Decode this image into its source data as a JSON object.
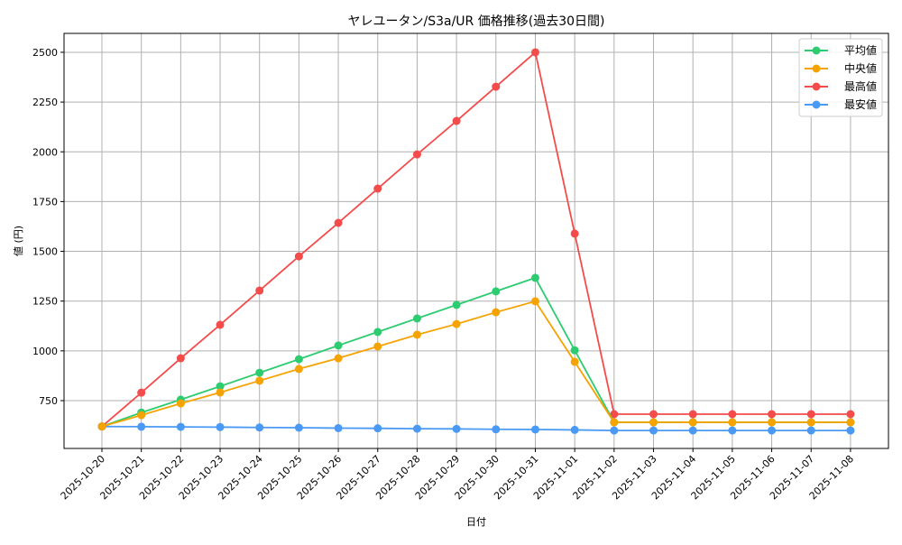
{
  "chart_data": {
    "type": "line",
    "title": "ヤレユータン/S3a/UR 価格推移(過去30日間)",
    "xlabel": "日付",
    "ylabel": "値 (円)",
    "ylim": [
      510,
      2595
    ],
    "yticks": [
      750,
      1000,
      1250,
      1500,
      1750,
      2000,
      2250,
      2500
    ],
    "grid": true,
    "legend_position": "upper right",
    "categories": [
      "2025-10-20",
      "2025-10-21",
      "2025-10-22",
      "2025-10-23",
      "2025-10-24",
      "2025-10-25",
      "2025-10-26",
      "2025-10-27",
      "2025-10-28",
      "2025-10-29",
      "2025-10-30",
      "2025-10-31",
      "2025-11-01",
      "2025-11-02",
      "2025-11-03",
      "2025-11-04",
      "2025-11-05",
      "2025-11-06",
      "2025-11-07",
      "2025-11-08"
    ],
    "series": [
      {
        "name": "平均値",
        "color": "#2ecc71",
        "values": [
          620,
          690,
          755,
          822,
          890,
          958,
          1027,
          1095,
          1163,
          1231,
          1299,
          1367,
          1003,
          641,
          641,
          641,
          641,
          641,
          641,
          641
        ]
      },
      {
        "name": "中央値",
        "color": "#f5a300",
        "values": [
          620,
          677,
          736,
          791,
          850,
          909,
          963,
          1022,
          1081,
          1135,
          1194,
          1249,
          945,
          641,
          641,
          641,
          641,
          641,
          641,
          641
        ]
      },
      {
        "name": "最高値",
        "color": "#f44b4b",
        "values": [
          620,
          790,
          963,
          1131,
          1303,
          1475,
          1643,
          1815,
          1987,
          2155,
          2327,
          2500,
          1589,
          682,
          682,
          682,
          682,
          682,
          682,
          682
        ]
      },
      {
        "name": "最安値",
        "color": "#4a9af5",
        "values": [
          620,
          619,
          618,
          617,
          615,
          614,
          612,
          611,
          609,
          608,
          606,
          605,
          603,
          600,
          600,
          600,
          600,
          600,
          600,
          600
        ]
      }
    ]
  }
}
